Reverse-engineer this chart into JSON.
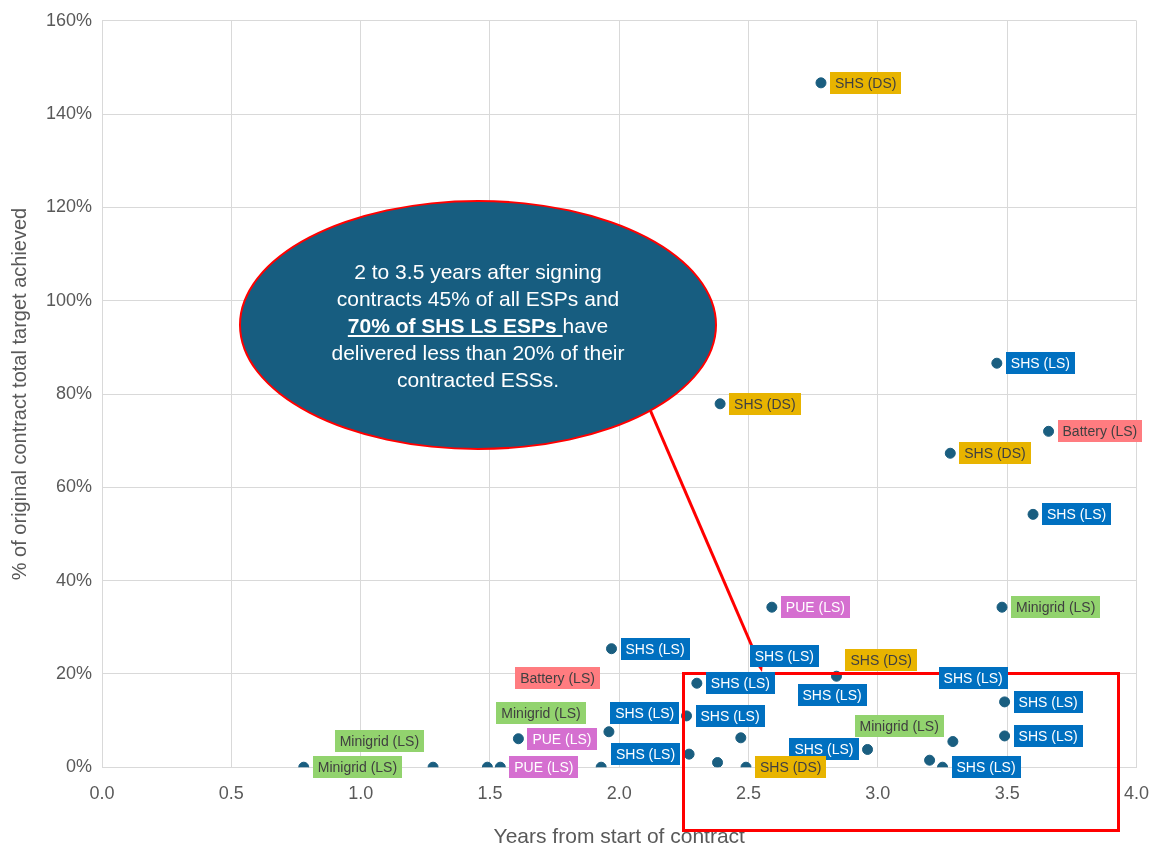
{
  "chart_data": {
    "type": "scatter",
    "xlabel": "Years from start of contract",
    "ylabel": "% of original contract total target achieved",
    "xlim": [
      0,
      4
    ],
    "xticks": [
      {
        "value": 0,
        "label": "0.0"
      },
      {
        "value": 0.5,
        "label": "0.5"
      },
      {
        "value": 1,
        "label": "1.0"
      },
      {
        "value": 1.5,
        "label": "1.5"
      },
      {
        "value": 2,
        "label": "2.0"
      },
      {
        "value": 2.5,
        "label": "2.5"
      },
      {
        "value": 3,
        "label": "3.0"
      },
      {
        "value": 3.5,
        "label": "3.5"
      },
      {
        "value": 4,
        "label": "4.0"
      }
    ],
    "ylim": [
      0,
      160
    ],
    "yticks": [
      {
        "value": 0,
        "label": "0%"
      },
      {
        "value": 20,
        "label": "20%"
      },
      {
        "value": 40,
        "label": "40%"
      },
      {
        "value": 60,
        "label": "60%"
      },
      {
        "value": 80,
        "label": "80%"
      },
      {
        "value": 100,
        "label": "100%"
      },
      {
        "value": 120,
        "label": "120%"
      },
      {
        "value": 140,
        "label": "140%"
      },
      {
        "value": 160,
        "label": "160%"
      }
    ],
    "grid": true,
    "legend": false,
    "marker": "circle",
    "annotations": [
      "2 to 3.5 years after signing contracts 45% of all ESPs and",
      "70% of SHS LS ESPs",
      "have delivered less than 20% of their contracted ESSs."
    ],
    "series": [
      {
        "name": "Minigrid (LS)",
        "color": "#1a5e80",
        "x": [
          3.48,
          3.29,
          0.78,
          1.28,
          1.49
        ],
        "values": [
          34.3,
          5.5,
          0,
          0,
          0
        ]
      },
      {
        "name": "PUE (LS)",
        "color": "#1a5e80",
        "x": [
          2.59,
          1.61,
          1.54
        ],
        "values": [
          34.3,
          6.1,
          0
        ]
      },
      {
        "name": "Battery (LS)",
        "color": "#1a5e80",
        "x": [
          3.66,
          1.96
        ],
        "values": [
          72,
          7.6
        ]
      },
      {
        "name": "SHS (LS)",
        "color": "#1a5e80",
        "x": [
          3.46,
          3.6,
          1.97,
          2.3,
          3.49,
          2.26,
          3.49,
          2.47,
          2.96,
          2.27,
          1.93,
          3.25,
          2.38,
          3.2
        ],
        "values": [
          86.6,
          54.2,
          25.4,
          18,
          14,
          11,
          6.7,
          6.3,
          3.8,
          2.8,
          0,
          0,
          1,
          1.5
        ]
      },
      {
        "name": "SHS (DS)",
        "color": "#1a5e80",
        "x": [
          2.78,
          2.39,
          3.28,
          2.84,
          2.49
        ],
        "values": [
          146.7,
          77.9,
          67.3,
          19.5,
          0
        ]
      }
    ]
  }
}
